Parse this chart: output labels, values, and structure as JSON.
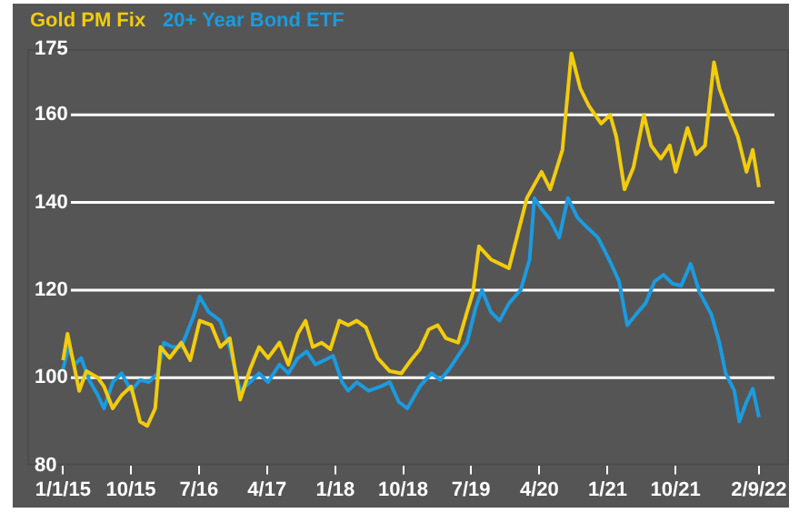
{
  "chart_data": {
    "type": "line",
    "legend": "top",
    "grid": "y",
    "marker": "none",
    "line_style": "solid",
    "xlim": [
      "2014-08-10",
      "2023-01-01"
    ],
    "xticks": [
      {
        "value": "2015-01-01",
        "label": "1/1/15"
      },
      {
        "value": "2015-10-01",
        "label": "10/15"
      },
      {
        "value": "2016-07-01",
        "label": "7/16"
      },
      {
        "value": "2017-04-01",
        "label": "4/17"
      },
      {
        "value": "2018-01-01",
        "label": "1/18"
      },
      {
        "value": "2018-10-01",
        "label": "10/18"
      },
      {
        "value": "2019-07-01",
        "label": "7/19"
      },
      {
        "value": "2020-04-01",
        "label": "4/20"
      },
      {
        "value": "2021-01-01",
        "label": "1/21"
      },
      {
        "value": "2021-10-01",
        "label": "10/21"
      },
      {
        "value": "2022-09-02",
        "label": "2/9/22"
      }
    ],
    "ylim": [
      80,
      175
    ],
    "yticks": [
      80,
      100,
      120,
      140,
      160,
      175
    ],
    "series": [
      {
        "name": "Gold PM Fix",
        "color": "#f2cc0c",
        "x": [
          "2015-01-01",
          "2015-01-19",
          "2015-02-17",
          "2015-03-07",
          "2015-04-05",
          "2015-05-21",
          "2015-06-15",
          "2015-07-20",
          "2015-08-25",
          "2015-10-02",
          "2015-11-07",
          "2015-12-06",
          "2016-01-07",
          "2016-01-28",
          "2016-03-05",
          "2016-04-21",
          "2016-05-27",
          "2016-07-04",
          "2016-08-20",
          "2016-09-25",
          "2016-11-02",
          "2016-12-14",
          "2017-01-23",
          "2017-02-28",
          "2017-04-05",
          "2017-05-21",
          "2017-06-26",
          "2017-08-03",
          "2017-09-03",
          "2017-10-02",
          "2017-11-07",
          "2017-12-12",
          "2018-01-17",
          "2018-02-22",
          "2018-03-28",
          "2018-05-04",
          "2018-06-20",
          "2018-08-08",
          "2018-09-24",
          "2018-11-01",
          "2018-12-07",
          "2019-01-12",
          "2019-02-17",
          "2019-03-22",
          "2019-05-10",
          "2019-06-15",
          "2019-07-09",
          "2019-08-02",
          "2019-09-19",
          "2019-12-01",
          "2020-02-11",
          "2020-04-10",
          "2020-05-15",
          "2020-07-03",
          "2020-08-08",
          "2020-09-13",
          "2020-10-18",
          "2020-12-06",
          "2021-01-11",
          "2021-02-05",
          "2021-03-10",
          "2021-04-15",
          "2021-05-27",
          "2021-06-25",
          "2021-08-03",
          "2021-09-08",
          "2021-10-02",
          "2021-11-18",
          "2021-12-23",
          "2022-01-28",
          "2022-03-05",
          "2022-03-27",
          "2022-05-04",
          "2022-06-09",
          "2022-07-14",
          "2022-08-08",
          "2022-09-02"
        ],
        "values": [
          104,
          110,
          102,
          97,
          101.5,
          100,
          98,
          93,
          96,
          98,
          90,
          89,
          93,
          107,
          104.5,
          108,
          104,
          113,
          112,
          107,
          109,
          95,
          102,
          107,
          104.5,
          108,
          103,
          110,
          113,
          107,
          108,
          106.5,
          113,
          112,
          113,
          111.5,
          104.5,
          101.5,
          101,
          104,
          106.5,
          111,
          112,
          109,
          108,
          115,
          119.5,
          130,
          127,
          125,
          141,
          147,
          143,
          152,
          174,
          166,
          162,
          158,
          160,
          155,
          143,
          148,
          160,
          153,
          150,
          153,
          147,
          157,
          151,
          153,
          172,
          166,
          160,
          155,
          147,
          152,
          143.5
        ]
      },
      {
        "name": "20+ Year Bond ETF",
        "color": "#1b9be0",
        "x": [
          "2015-01-01",
          "2015-01-23",
          "2015-02-17",
          "2015-03-15",
          "2015-04-16",
          "2015-05-21",
          "2015-06-15",
          "2015-07-20",
          "2015-08-25",
          "2015-10-02",
          "2015-11-07",
          "2015-12-12",
          "2016-01-17",
          "2016-02-11",
          "2016-03-16",
          "2016-04-21",
          "2016-06-09",
          "2016-07-04",
          "2016-08-09",
          "2016-09-25",
          "2016-11-02",
          "2016-12-14",
          "2017-01-23",
          "2017-02-28",
          "2017-04-05",
          "2017-05-21",
          "2017-06-26",
          "2017-08-03",
          "2017-09-08",
          "2017-10-13",
          "2017-11-18",
          "2017-12-23",
          "2018-01-28",
          "2018-02-22",
          "2018-03-28",
          "2018-05-15",
          "2018-07-03",
          "2018-08-08",
          "2018-09-13",
          "2018-10-18",
          "2018-12-07",
          "2019-01-23",
          "2019-02-28",
          "2019-04-05",
          "2019-05-10",
          "2019-06-15",
          "2019-07-20",
          "2019-08-14",
          "2019-09-19",
          "2019-10-24",
          "2019-12-01",
          "2020-01-17",
          "2020-02-22",
          "2020-03-12",
          "2020-04-10",
          "2020-05-15",
          "2020-06-20",
          "2020-07-25",
          "2020-09-02",
          "2020-10-07",
          "2020-11-23",
          "2021-01-11",
          "2021-02-16",
          "2021-03-21",
          "2021-04-26",
          "2021-06-03",
          "2021-07-09",
          "2021-08-14",
          "2021-09-19",
          "2021-10-24",
          "2021-12-01",
          "2022-01-06",
          "2022-02-22",
          "2022-03-27",
          "2022-04-21",
          "2022-05-26",
          "2022-06-15",
          "2022-07-14",
          "2022-08-08",
          "2022-09-02"
        ],
        "values": [
          102,
          107,
          103,
          104.5,
          99.5,
          96,
          93,
          99,
          101,
          97,
          99.5,
          99,
          101,
          108,
          107,
          107,
          114,
          118.5,
          115,
          113,
          107,
          97,
          99,
          101,
          99,
          103,
          101,
          104.5,
          106,
          103,
          104,
          105,
          99,
          97,
          99,
          97,
          98,
          99,
          94.5,
          93,
          98,
          101,
          99.5,
          102,
          105,
          108,
          116,
          120,
          115,
          113,
          117,
          120,
          127,
          141,
          138.5,
          136,
          132,
          141,
          136.5,
          134.5,
          132,
          126.5,
          122,
          112,
          114.5,
          117,
          122,
          123.5,
          121.5,
          121,
          126,
          119.5,
          114.5,
          108,
          101,
          97,
          90,
          94.5,
          97.5,
          91
        ]
      }
    ]
  }
}
